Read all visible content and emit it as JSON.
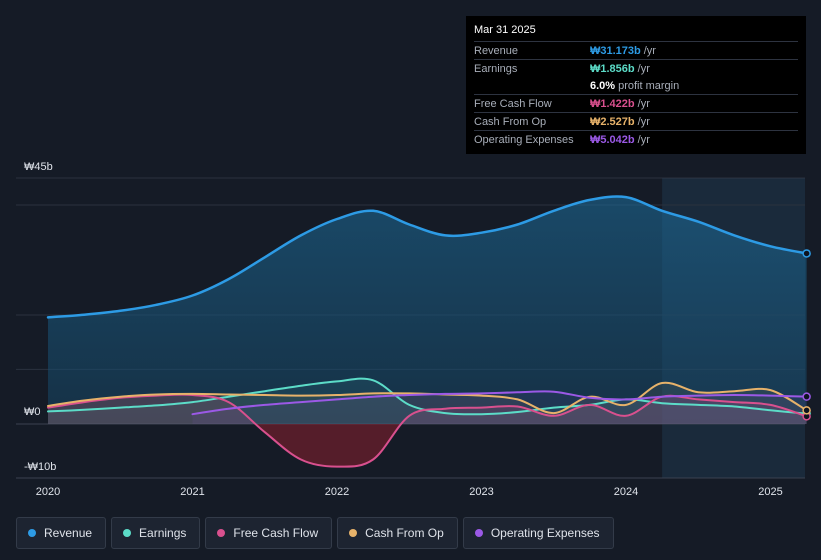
{
  "tooltip": {
    "date": "Mar 31 2025",
    "rows": [
      {
        "label": "Revenue",
        "value": "₩31.173b",
        "unit": "/yr",
        "color": "#2d9be5"
      },
      {
        "label": "Earnings",
        "value": "₩1.856b",
        "unit": "/yr",
        "color": "#5cdcc8"
      },
      {
        "label": "",
        "value": "6.0%",
        "unit": "profit margin",
        "color": "#ffffff"
      },
      {
        "label": "Free Cash Flow",
        "value": "₩1.422b",
        "unit": "/yr",
        "color": "#d9508e"
      },
      {
        "label": "Cash From Op",
        "value": "₩2.527b",
        "unit": "/yr",
        "color": "#e7b26a"
      },
      {
        "label": "Operating Expenses",
        "value": "₩5.042b",
        "unit": "/yr",
        "color": "#9b59e6"
      }
    ]
  },
  "legend": [
    {
      "label": "Revenue",
      "color": "#2d9be5"
    },
    {
      "label": "Earnings",
      "color": "#5cdcc8"
    },
    {
      "label": "Free Cash Flow",
      "color": "#d9508e"
    },
    {
      "label": "Cash From Op",
      "color": "#e7b26a"
    },
    {
      "label": "Operating Expenses",
      "color": "#9b59e6"
    }
  ],
  "chart_data": {
    "type": "area",
    "title": "",
    "xlabel": "",
    "ylabel": "",
    "ylim": [
      -10,
      45
    ],
    "xlim": [
      2020.0,
      2025.25
    ],
    "y_tick_labels": [
      {
        "value": 45,
        "label": "₩45b"
      },
      {
        "value": 0,
        "label": "₩0"
      },
      {
        "value": -10,
        "label": "-₩10b"
      }
    ],
    "x_tick_labels": [
      {
        "value": 2020,
        "label": "2020"
      },
      {
        "value": 2021,
        "label": "2021"
      },
      {
        "value": 2022,
        "label": "2022"
      },
      {
        "value": 2023,
        "label": "2023"
      },
      {
        "value": 2024,
        "label": "2024"
      },
      {
        "value": 2025,
        "label": "2025"
      }
    ],
    "highlight_from": 2024.25,
    "series": [
      {
        "name": "Revenue",
        "color": "#2d9be5",
        "fill": true,
        "x": [
          2020.0,
          2020.25,
          2020.5,
          2020.75,
          2021.0,
          2021.25,
          2021.5,
          2021.75,
          2022.0,
          2022.25,
          2022.5,
          2022.75,
          2023.0,
          2023.25,
          2023.5,
          2023.75,
          2024.0,
          2024.25,
          2024.5,
          2024.75,
          2025.0,
          2025.25
        ],
        "values": [
          19.5,
          20.0,
          20.7,
          21.8,
          23.5,
          26.5,
          30.5,
          34.5,
          37.5,
          39.0,
          36.5,
          34.5,
          35.0,
          36.5,
          39.0,
          41.0,
          41.5,
          39.0,
          37.0,
          34.5,
          32.5,
          31.2
        ]
      },
      {
        "name": "Earnings",
        "color": "#5cdcc8",
        "fill": false,
        "x": [
          2020.0,
          2020.25,
          2020.5,
          2020.75,
          2021.0,
          2021.25,
          2021.5,
          2021.75,
          2022.0,
          2022.25,
          2022.5,
          2022.75,
          2023.0,
          2023.25,
          2023.5,
          2023.75,
          2024.0,
          2024.25,
          2024.5,
          2024.75,
          2025.0,
          2025.25
        ],
        "values": [
          2.3,
          2.6,
          3.0,
          3.4,
          4.0,
          5.0,
          6.0,
          7.0,
          7.8,
          8.0,
          3.5,
          2.0,
          1.8,
          2.2,
          3.0,
          3.5,
          4.5,
          3.8,
          3.5,
          3.2,
          2.5,
          1.9
        ]
      },
      {
        "name": "Free Cash Flow",
        "color": "#d9508e",
        "fill": true,
        "x": [
          2020.0,
          2020.25,
          2020.5,
          2020.75,
          2021.0,
          2021.25,
          2021.5,
          2021.75,
          2022.0,
          2022.25,
          2022.5,
          2022.75,
          2023.0,
          2023.25,
          2023.5,
          2023.75,
          2024.0,
          2024.25,
          2024.5,
          2024.75,
          2025.0,
          2025.25
        ],
        "values": [
          3.0,
          4.0,
          4.8,
          5.2,
          5.3,
          4.0,
          -1.5,
          -6.5,
          -7.8,
          -6.5,
          1.5,
          2.8,
          3.0,
          3.2,
          1.5,
          3.5,
          1.5,
          5.0,
          4.5,
          4.0,
          3.5,
          1.4
        ]
      },
      {
        "name": "Cash From Op",
        "color": "#e7b26a",
        "fill": false,
        "x": [
          2020.0,
          2020.25,
          2020.5,
          2020.75,
          2021.0,
          2021.25,
          2021.5,
          2021.75,
          2022.0,
          2022.25,
          2022.5,
          2022.75,
          2023.0,
          2023.25,
          2023.5,
          2023.75,
          2024.0,
          2024.25,
          2024.5,
          2024.75,
          2025.0,
          2025.25
        ],
        "values": [
          3.3,
          4.3,
          5.0,
          5.4,
          5.5,
          5.4,
          5.3,
          5.2,
          5.3,
          5.6,
          5.6,
          5.4,
          5.2,
          4.5,
          2.0,
          5.0,
          3.5,
          7.5,
          5.8,
          6.0,
          6.2,
          2.5
        ]
      },
      {
        "name": "Operating Expenses",
        "color": "#9b59e6",
        "fill": false,
        "x": [
          2021.0,
          2021.25,
          2021.5,
          2021.75,
          2022.0,
          2022.25,
          2022.5,
          2022.75,
          2023.0,
          2023.25,
          2023.5,
          2023.75,
          2024.0,
          2024.25,
          2024.5,
          2024.75,
          2025.0,
          2025.25
        ],
        "values": [
          1.8,
          2.8,
          3.5,
          4.0,
          4.5,
          5.0,
          5.3,
          5.5,
          5.6,
          5.8,
          5.9,
          4.8,
          4.5,
          5.0,
          5.2,
          5.3,
          5.2,
          5.0
        ]
      }
    ]
  }
}
